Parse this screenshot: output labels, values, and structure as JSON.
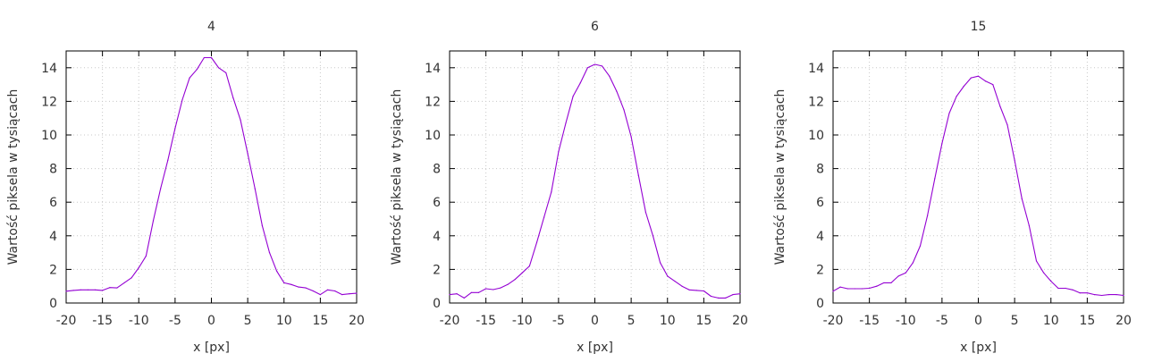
{
  "colors": {
    "series": "#9400d3",
    "grid": "#c8c8c8",
    "axis": "#000000",
    "text": "#333333"
  },
  "chart_data": [
    {
      "type": "line",
      "title": "4",
      "xlabel": "x [px]",
      "ylabel": "Wartość piksela w tysiącach",
      "xlim": [
        -20,
        20
      ],
      "ylim": [
        0,
        15
      ],
      "grid": true,
      "xticks": [
        -20,
        -15,
        -10,
        -5,
        0,
        5,
        10,
        15,
        20
      ],
      "yticks": [
        0,
        2,
        4,
        6,
        8,
        10,
        12,
        14
      ],
      "series": [
        {
          "x": [
            -20,
            -19,
            -18,
            -17,
            -16,
            -15,
            -14,
            -13,
            -12,
            -11,
            -10,
            -9,
            -8,
            -7,
            -6,
            -5,
            -4,
            -3,
            -2,
            -1,
            0,
            1,
            2,
            3,
            4,
            5,
            6,
            7,
            8,
            9,
            10,
            11,
            12,
            13,
            14,
            15,
            16,
            17,
            18,
            19,
            20
          ],
          "y": [
            0.7,
            0.75,
            0.78,
            0.78,
            0.78,
            0.75,
            0.92,
            0.9,
            1.2,
            1.5,
            2.1,
            2.8,
            4.9,
            6.8,
            8.5,
            10.4,
            12.1,
            13.4,
            13.9,
            14.6,
            14.6,
            14.0,
            13.7,
            12.2,
            10.9,
            8.9,
            6.8,
            4.6,
            3.0,
            1.9,
            1.2,
            1.1,
            0.95,
            0.9,
            0.72,
            0.5,
            0.78,
            0.72,
            0.5,
            0.55,
            0.58
          ]
        }
      ]
    },
    {
      "type": "line",
      "title": "6",
      "xlabel": "x [px]",
      "ylabel": "Wartość piksela w tysiącach",
      "xlim": [
        -20,
        20
      ],
      "ylim": [
        0,
        15
      ],
      "grid": true,
      "xticks": [
        -20,
        -15,
        -10,
        -5,
        0,
        5,
        10,
        15,
        20
      ],
      "yticks": [
        0,
        2,
        4,
        6,
        8,
        10,
        12,
        14
      ],
      "series": [
        {
          "x": [
            -20,
            -19,
            -18,
            -17,
            -16,
            -15,
            -14,
            -13,
            -12,
            -11,
            -10,
            -9,
            -8,
            -7,
            -6,
            -5,
            -4,
            -3,
            -2,
            -1,
            0,
            1,
            2,
            3,
            4,
            5,
            6,
            7,
            8,
            9,
            10,
            11,
            12,
            13,
            14,
            15,
            16,
            17,
            18,
            19,
            20
          ],
          "y": [
            0.5,
            0.55,
            0.3,
            0.62,
            0.62,
            0.85,
            0.8,
            0.9,
            1.1,
            1.4,
            1.8,
            2.2,
            3.6,
            5.1,
            6.6,
            9.0,
            10.7,
            12.3,
            13.1,
            14.0,
            14.2,
            14.1,
            13.5,
            12.6,
            11.5,
            9.9,
            7.6,
            5.4,
            4.0,
            2.4,
            1.6,
            1.3,
            1.0,
            0.78,
            0.75,
            0.72,
            0.4,
            0.3,
            0.3,
            0.5,
            0.55
          ]
        }
      ]
    },
    {
      "type": "line",
      "title": "15",
      "xlabel": "x [px]",
      "ylabel": "Wartość piksela w tysiącach",
      "xlim": [
        -20,
        20
      ],
      "ylim": [
        0,
        15
      ],
      "grid": true,
      "xticks": [
        -20,
        -15,
        -10,
        -5,
        0,
        5,
        10,
        15,
        20
      ],
      "yticks": [
        0,
        2,
        4,
        6,
        8,
        10,
        12,
        14
      ],
      "series": [
        {
          "x": [
            -20,
            -19,
            -18,
            -17,
            -16,
            -15,
            -14,
            -13,
            -12,
            -11,
            -10,
            -9,
            -8,
            -7,
            -6,
            -5,
            -4,
            -3,
            -2,
            -1,
            0,
            1,
            2,
            3,
            4,
            5,
            6,
            7,
            8,
            9,
            10,
            11,
            12,
            13,
            14,
            15,
            16,
            17,
            18,
            19,
            20
          ],
          "y": [
            0.7,
            0.95,
            0.85,
            0.85,
            0.85,
            0.88,
            1.0,
            1.2,
            1.2,
            1.6,
            1.8,
            2.4,
            3.4,
            5.2,
            7.4,
            9.5,
            11.3,
            12.3,
            12.9,
            13.4,
            13.5,
            13.2,
            13.0,
            11.7,
            10.6,
            8.5,
            6.2,
            4.6,
            2.5,
            1.8,
            1.3,
            0.88,
            0.88,
            0.78,
            0.6,
            0.6,
            0.5,
            0.45,
            0.5,
            0.5,
            0.45
          ]
        }
      ]
    }
  ]
}
